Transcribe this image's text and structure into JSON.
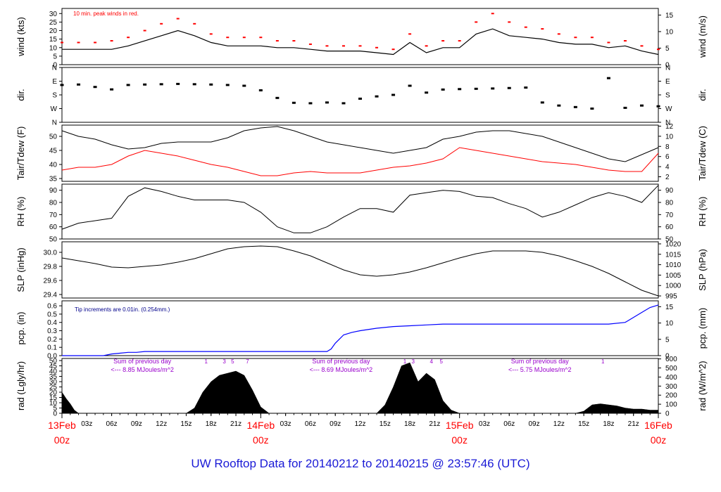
{
  "footer": {
    "title": "UW Rooftop Data for 20140212  to  20140215 @ 23:57:46  (UTC)"
  },
  "colors": {
    "axis": "#000000",
    "data": "#000000",
    "red": "#ff0000",
    "blue": "#0000ff",
    "purple": "#9900cc",
    "navy": "#00008b"
  },
  "chart_data": [
    {
      "type": "line",
      "panel": "wind",
      "ylabel": "wind (kts)",
      "ylabel_right": "wind (m/s)",
      "ylim": [
        0,
        33
      ],
      "yticks": [
        0,
        5,
        10,
        15,
        20,
        25,
        30
      ],
      "ylim_right": [
        0,
        17
      ],
      "yticks_right": [
        0,
        5,
        10,
        15
      ],
      "annotation": "10 min. peak winds in red.",
      "series": [
        {
          "x": [
            0,
            2,
            4,
            6,
            8,
            10,
            12,
            14,
            16,
            18,
            20,
            22,
            24,
            26,
            28,
            30,
            32,
            34,
            36,
            38,
            40,
            42,
            44,
            46,
            48,
            50,
            52,
            54,
            56,
            58,
            60,
            62,
            64,
            66,
            68,
            70,
            72
          ],
          "values": [
            9,
            9,
            9,
            9,
            11,
            14,
            17,
            20,
            17,
            13,
            11,
            11,
            11,
            10,
            10,
            9,
            8,
            8,
            8,
            7,
            6,
            13,
            7,
            10,
            10,
            18,
            21,
            17,
            16,
            15,
            13,
            12,
            12,
            10,
            11,
            8,
            6
          ]
        },
        {
          "x": [
            0,
            2,
            4,
            6,
            8,
            10,
            12,
            14,
            16,
            18,
            20,
            22,
            24,
            26,
            28,
            30,
            32,
            34,
            36,
            38,
            40,
            42,
            44,
            46,
            48,
            50,
            52,
            54,
            56,
            58,
            60,
            62,
            64,
            66,
            68,
            70,
            72
          ],
          "values": [
            13,
            13,
            13,
            14,
            16,
            20,
            24,
            27,
            24,
            18,
            16,
            16,
            16,
            14,
            14,
            12,
            11,
            11,
            11,
            10,
            9,
            18,
            11,
            14,
            14,
            25,
            30,
            25,
            22,
            21,
            18,
            16,
            16,
            13,
            14,
            11,
            9
          ]
        }
      ]
    },
    {
      "type": "scatter",
      "panel": "dir",
      "ylabel": "dir.",
      "ylabel_right": "dir.",
      "yticks": [
        "N",
        "W",
        "S",
        "E",
        "N"
      ],
      "x": [
        0,
        2,
        4,
        6,
        8,
        10,
        12,
        14,
        16,
        18,
        20,
        22,
        24,
        26,
        28,
        30,
        32,
        34,
        36,
        38,
        40,
        42,
        44,
        46,
        48,
        50,
        52,
        54,
        56,
        58,
        60,
        62,
        64,
        66,
        68,
        70,
        72
      ],
      "values": [
        245,
        248,
        232,
        216,
        245,
        248,
        250,
        252,
        250,
        248,
        245,
        240,
        210,
        160,
        128,
        125,
        130,
        125,
        155,
        170,
        180,
        240,
        195,
        215,
        218,
        220,
        222,
        225,
        228,
        130,
        110,
        100,
        90,
        290,
        95,
        110,
        105
      ]
    },
    {
      "type": "line",
      "panel": "temp",
      "ylabel": "Tair/Tdew (F)",
      "ylabel_right": "Tair/Tdew (C)",
      "ylim": [
        34,
        54
      ],
      "yticks": [
        35,
        40,
        45,
        50
      ],
      "ylim_right": [
        1.1,
        12.2
      ],
      "yticks_right": [
        2,
        4,
        6,
        8,
        10,
        12
      ],
      "series": [
        {
          "x": [
            0,
            2,
            4,
            6,
            8,
            10,
            12,
            14,
            16,
            18,
            20,
            22,
            24,
            26,
            28,
            30,
            32,
            34,
            36,
            38,
            40,
            42,
            44,
            46,
            48,
            50,
            52,
            54,
            56,
            58,
            60,
            62,
            64,
            66,
            68,
            70,
            72
          ],
          "values": [
            52,
            50,
            49,
            47,
            45.5,
            46,
            47.5,
            48,
            48,
            48,
            49.5,
            52,
            53,
            53.5,
            52,
            50,
            48,
            47,
            46,
            45,
            44,
            45,
            46,
            49,
            50,
            51.5,
            52,
            52,
            51,
            50,
            48,
            46,
            44,
            42,
            41,
            43.5,
            46
          ]
        },
        {
          "x": [
            0,
            2,
            4,
            6,
            8,
            10,
            12,
            14,
            16,
            18,
            20,
            22,
            24,
            26,
            28,
            30,
            32,
            34,
            36,
            38,
            40,
            42,
            44,
            46,
            48,
            50,
            52,
            54,
            56,
            58,
            60,
            62,
            64,
            66,
            68,
            70,
            72
          ],
          "values": [
            38,
            39,
            39,
            40,
            43,
            45,
            44,
            43,
            41.5,
            40,
            39,
            37.5,
            36,
            36,
            37,
            37.5,
            37,
            37,
            37,
            38,
            39,
            39.5,
            40.5,
            42,
            46,
            45,
            44,
            43,
            42,
            41,
            40.5,
            40,
            39,
            38,
            37.5,
            37.5,
            44
          ]
        }
      ]
    },
    {
      "type": "line",
      "panel": "rh",
      "ylabel": "RH (%)",
      "ylabel_right": "RH (%)",
      "ylim": [
        50,
        95
      ],
      "yticks": [
        50,
        60,
        70,
        80,
        90
      ],
      "x": [
        0,
        2,
        4,
        6,
        8,
        10,
        12,
        14,
        16,
        18,
        20,
        22,
        24,
        26,
        28,
        30,
        32,
        34,
        36,
        38,
        40,
        42,
        44,
        46,
        48,
        50,
        52,
        54,
        56,
        58,
        60,
        62,
        64,
        66,
        68,
        70,
        72
      ],
      "values": [
        58,
        63,
        65,
        67,
        85,
        92,
        89,
        85,
        82,
        82,
        82,
        80,
        72,
        60,
        55,
        55,
        60,
        68,
        75,
        75,
        72,
        86,
        88,
        90,
        89,
        85,
        84,
        79,
        75,
        68,
        72,
        78,
        84,
        88,
        85,
        80,
        94
      ]
    },
    {
      "type": "line",
      "panel": "slp",
      "ylabel": "SLP (inHg)",
      "ylabel_right": "SLP (hPa)",
      "ylim": [
        29.35,
        30.15
      ],
      "yticks": [
        29.4,
        29.6,
        29.8,
        30.0
      ],
      "ylim_right": [
        994,
        1021
      ],
      "yticks_right": [
        995,
        1000,
        1005,
        1010,
        1015,
        1020
      ],
      "x": [
        0,
        2,
        4,
        6,
        8,
        10,
        12,
        14,
        16,
        18,
        20,
        22,
        24,
        26,
        28,
        30,
        32,
        34,
        36,
        38,
        40,
        42,
        44,
        46,
        48,
        50,
        52,
        54,
        56,
        58,
        60,
        62,
        64,
        66,
        68,
        70,
        72
      ],
      "values": [
        29.92,
        29.88,
        29.84,
        29.79,
        29.78,
        29.8,
        29.82,
        29.86,
        29.91,
        29.98,
        30.05,
        30.08,
        30.09,
        30.08,
        30.02,
        29.95,
        29.85,
        29.75,
        29.68,
        29.66,
        29.68,
        29.72,
        29.78,
        29.85,
        29.92,
        29.98,
        30.02,
        30.02,
        30.02,
        30.0,
        29.95,
        29.88,
        29.8,
        29.7,
        29.58,
        29.46,
        29.38
      ]
    },
    {
      "type": "line",
      "panel": "pcp",
      "ylabel": "pcp. (in)",
      "ylabel_right": "pcp. (mm)",
      "ylim": [
        0,
        0.66
      ],
      "yticks": [
        0.0,
        0.1,
        0.2,
        0.3,
        0.4,
        0.5,
        0.6
      ],
      "ylim_right": [
        0,
        16.8
      ],
      "yticks_right": [
        0,
        5,
        10,
        15
      ],
      "annotation": "Tip increments are 0.01in. (0.254mm.)",
      "x": [
        0,
        4,
        5,
        6,
        7,
        8,
        9,
        10,
        12,
        14,
        16,
        18,
        20,
        22,
        24,
        26,
        28,
        30,
        32,
        32.5,
        33,
        33.5,
        34,
        35,
        36,
        38,
        40,
        42,
        44,
        46,
        48,
        50,
        52,
        54,
        56,
        58,
        60,
        62,
        64,
        66,
        68,
        69,
        70,
        71,
        72
      ],
      "values": [
        0,
        0,
        0,
        0.02,
        0.03,
        0.04,
        0.04,
        0.05,
        0.05,
        0.05,
        0.05,
        0.05,
        0.05,
        0.05,
        0.05,
        0.05,
        0.05,
        0.05,
        0.05,
        0.08,
        0.15,
        0.2,
        0.25,
        0.28,
        0.3,
        0.33,
        0.35,
        0.36,
        0.37,
        0.38,
        0.38,
        0.38,
        0.38,
        0.38,
        0.38,
        0.38,
        0.38,
        0.38,
        0.38,
        0.38,
        0.4,
        0.46,
        0.52,
        0.58,
        0.61
      ]
    },
    {
      "type": "area",
      "panel": "rad",
      "ylabel": "rad (Lgly/hr)",
      "ylabel_right": "rad (W/m^2)",
      "ylim": [
        0,
        52
      ],
      "yticks": [
        0,
        5,
        10,
        15,
        20,
        25,
        30,
        35,
        40,
        45,
        50
      ],
      "ylim_right": [
        0,
        605
      ],
      "yticks_right": [
        0,
        100,
        200,
        300,
        400,
        500,
        600
      ],
      "x": [
        0,
        0.5,
        1,
        1.5,
        2,
        15,
        16,
        17,
        18,
        19,
        20,
        21,
        22,
        23,
        24,
        25,
        38,
        39,
        40,
        41,
        42,
        43,
        44,
        45,
        46,
        47,
        48,
        49,
        62,
        63,
        64,
        65,
        66,
        67,
        68,
        69,
        70,
        71,
        72
      ],
      "values": [
        20,
        14,
        9,
        3,
        0,
        0,
        5,
        20,
        30,
        36,
        38,
        40,
        36,
        22,
        6,
        0,
        0,
        8,
        25,
        45,
        48,
        30,
        38,
        32,
        12,
        3,
        0,
        0,
        0,
        2,
        8,
        9,
        8,
        7,
        5,
        4,
        4,
        3,
        3
      ],
      "annotations": [
        {
          "text": "Sum of previous day",
          "x": 8
        },
        {
          "text": "<--- 8.85 MJoules/m^2",
          "x": 8
        },
        {
          "text": "Sum of previous day",
          "x": 32
        },
        {
          "text": "<--- 8.69 MJoules/m^2",
          "x": 32
        },
        {
          "text": "Sum of previous day",
          "x": 56
        },
        {
          "text": "<--- 5.75 MJoules/m^2",
          "x": 56
        }
      ],
      "marks": [
        {
          "text": "1",
          "x": 17.4
        },
        {
          "text": "3",
          "x": 19.6
        },
        {
          "text": "5",
          "x": 20.6
        },
        {
          "text": "7",
          "x": 22.4
        },
        {
          "text": "1",
          "x": 41.4
        },
        {
          "text": "3",
          "x": 42.4
        },
        {
          "text": "4",
          "x": 44.6
        },
        {
          "text": "5",
          "x": 45.8
        },
        {
          "text": "1",
          "x": 65.3
        }
      ]
    }
  ],
  "x_axis": {
    "range": [
      0,
      72
    ],
    "minor_labels": [
      {
        "x": 3,
        "text": "03z"
      },
      {
        "x": 6,
        "text": "06z"
      },
      {
        "x": 9,
        "text": "09z"
      },
      {
        "x": 12,
        "text": "12z"
      },
      {
        "x": 15,
        "text": "15z"
      },
      {
        "x": 18,
        "text": "18z"
      },
      {
        "x": 21,
        "text": "21z"
      },
      {
        "x": 27,
        "text": "03z"
      },
      {
        "x": 30,
        "text": "06z"
      },
      {
        "x": 33,
        "text": "09z"
      },
      {
        "x": 36,
        "text": "12z"
      },
      {
        "x": 39,
        "text": "15z"
      },
      {
        "x": 42,
        "text": "18z"
      },
      {
        "x": 45,
        "text": "21z"
      },
      {
        "x": 51,
        "text": "03z"
      },
      {
        "x": 54,
        "text": "06z"
      },
      {
        "x": 57,
        "text": "09z"
      },
      {
        "x": 60,
        "text": "12z"
      },
      {
        "x": 63,
        "text": "15z"
      },
      {
        "x": 66,
        "text": "18z"
      },
      {
        "x": 69,
        "text": "21z"
      }
    ],
    "major_labels": [
      {
        "x": 0,
        "date": "13Feb",
        "time": "00z"
      },
      {
        "x": 24,
        "date": "14Feb",
        "time": "00z"
      },
      {
        "x": 48,
        "date": "15Feb",
        "time": "00z"
      },
      {
        "x": 72,
        "date": "16Feb",
        "time": "00z"
      }
    ]
  }
}
